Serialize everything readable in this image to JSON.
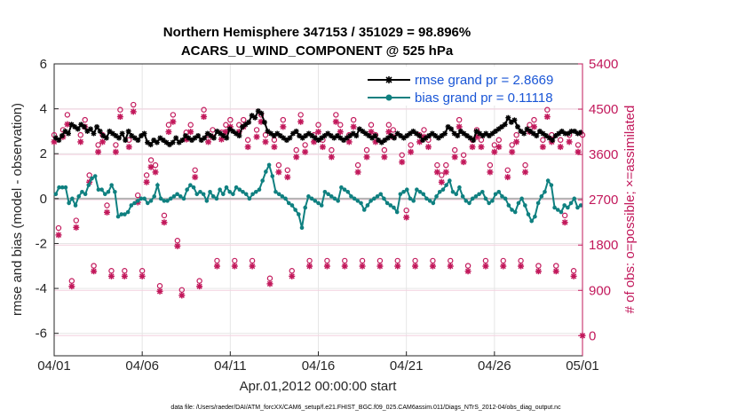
{
  "chart_data": {
    "type": "line",
    "title_lines": [
      "Northern Hemisphere 347153 / 351029 = 98.896%",
      "ACARS_U_WIND_COMPONENT @ 525 hPa"
    ],
    "xlabel": "Apr.01,2012 00:00:00 start",
    "ylabel_left": "rmse and bias (model - observation)",
    "ylabel_right": "# of obs: o=possible; ×=assimilated",
    "xlim": [
      0,
      30
    ],
    "ylim_left": [
      -7,
      6
    ],
    "ylim_right": [
      -400,
      5400
    ],
    "x_ticks": [
      0,
      5,
      10,
      15,
      20,
      25,
      30
    ],
    "x_tick_labels": [
      "04/01",
      "04/06",
      "04/11",
      "04/16",
      "04/21",
      "04/26",
      "05/01"
    ],
    "y_ticks_left": [
      -6,
      -4,
      -2,
      0,
      2,
      4,
      6
    ],
    "y_tick_labels_left": [
      "-6",
      "-4",
      "-2",
      "0",
      "2",
      "4",
      "6"
    ],
    "y_ticks_right": [
      0,
      900,
      1800,
      2700,
      3600,
      4500,
      5400
    ],
    "y_tick_labels_right": [
      "0",
      "900",
      "1800",
      "2700",
      "3600",
      "4500",
      "5400"
    ],
    "grid": true,
    "legend_position": "top-right",
    "series": [
      {
        "name": "rmse grand pr = 2.8669",
        "axis": "left",
        "color": "#000000",
        "marker": "asterisk",
        "values": [
          2.7,
          2.6,
          2.8,
          3.0,
          2.9,
          3.3,
          3.2,
          3.1,
          3.3,
          3.2,
          3.0,
          3.1,
          2.9,
          3.2,
          3.0,
          2.8,
          2.7,
          3.0,
          2.9,
          2.8,
          2.7,
          2.9,
          2.6,
          3.0,
          2.8,
          2.7,
          2.6,
          2.8,
          2.9,
          2.5,
          2.4,
          2.6,
          2.5,
          2.7,
          2.6,
          2.5,
          2.4,
          2.5,
          2.7,
          2.5,
          2.6,
          2.8,
          2.7,
          2.6,
          2.7,
          2.8,
          2.6,
          2.7,
          2.9,
          2.8,
          2.7,
          3.0,
          2.9,
          2.8,
          2.7,
          3.1,
          3.0,
          2.9,
          2.8,
          3.2,
          3.3,
          3.4,
          3.7,
          3.6,
          3.9,
          3.8,
          3.4,
          3.0,
          2.9,
          2.8,
          2.9,
          2.8,
          2.7,
          2.6,
          2.7,
          2.9,
          3.0,
          2.8,
          2.7,
          2.8,
          2.9,
          2.8,
          2.7,
          2.6,
          2.7,
          2.8,
          2.9,
          2.8,
          2.7,
          2.8,
          2.7,
          2.6,
          2.7,
          2.8,
          2.9,
          2.8,
          3.1,
          3.0,
          2.9,
          2.8,
          2.7,
          2.8,
          2.6,
          2.5,
          2.6,
          2.7,
          2.8,
          2.7,
          2.9,
          2.8,
          2.7,
          2.8,
          2.9,
          3.0,
          2.9,
          2.8,
          2.6,
          2.7,
          2.8,
          2.9,
          2.8,
          2.7,
          2.8,
          2.9,
          3.2,
          3.1,
          2.9,
          2.8,
          3.0,
          2.9,
          2.8,
          2.7,
          2.6,
          3.0,
          2.9,
          2.8,
          2.9,
          2.8,
          2.9,
          3.0,
          3.1,
          3.2,
          3.3,
          3.6,
          3.4,
          3.5,
          3.2,
          3.0,
          2.9,
          3.1,
          3.0,
          2.9,
          2.8,
          3.0,
          2.9,
          2.8,
          2.7,
          2.6,
          2.8,
          2.9,
          3.0,
          2.9,
          2.9,
          3.0,
          3.0,
          2.9,
          2.95
        ]
      },
      {
        "name": "bias grand pr = 0.11118",
        "axis": "left",
        "color": "#0f8080",
        "marker": "circle",
        "values": [
          0.2,
          0.5,
          0.5,
          0.5,
          -0.2,
          0.0,
          -0.3,
          0.1,
          0.3,
          0.2,
          0.6,
          0.9,
          1.0,
          0.4,
          0.4,
          0.2,
          0.3,
          0.6,
          0.3,
          -0.8,
          -0.7,
          -0.7,
          -0.6,
          -0.3,
          -0.2,
          -0.1,
          0.0,
          0.0,
          -0.2,
          -0.1,
          0.1,
          0.6,
          0.0,
          -0.1,
          -0.1,
          0.0,
          0.1,
          0.2,
          0.1,
          0.0,
          0.4,
          0.6,
          0.5,
          0.2,
          0.3,
          0.2,
          -0.1,
          0.3,
          0.1,
          0.0,
          0.4,
          0.2,
          0.5,
          0.3,
          0.2,
          0.5,
          0.4,
          0.3,
          0.2,
          0.0,
          0.2,
          0.3,
          0.4,
          0.8,
          1.2,
          1.5,
          1.0,
          0.3,
          0.2,
          0.1,
          0.0,
          -0.2,
          -0.3,
          -0.5,
          -0.7,
          -1.3,
          -0.4,
          0.1,
          0.0,
          -0.1,
          -0.2,
          -0.3,
          0.3,
          0.2,
          0.1,
          0.0,
          -0.1,
          0.5,
          0.4,
          0.3,
          0.1,
          0.0,
          -0.1,
          -0.2,
          -0.5,
          -0.3,
          -0.1,
          0.0,
          0.1,
          0.2,
          0.0,
          -0.2,
          -0.3,
          -0.4,
          -0.6,
          0.2,
          0.3,
          0.4,
          0.0,
          -0.1,
          0.4,
          0.3,
          0.2,
          0.0,
          -0.1,
          -0.2,
          0.1,
          0.3,
          0.4,
          0.6,
          0.8,
          0.3,
          0.2,
          0.5,
          0.1,
          -0.1,
          -0.2,
          0.0,
          0.1,
          0.2,
          0.3,
          0.0,
          -0.2,
          -0.1,
          0.2,
          0.3,
          0.1,
          0.0,
          -0.3,
          -0.5,
          -0.6,
          -0.2,
          0.0,
          -0.3,
          -0.7,
          -1.0,
          -0.8,
          -0.2,
          0.1,
          0.3,
          0.8,
          0.6,
          -0.4,
          -0.5,
          -0.6,
          -0.3,
          -0.4,
          -0.2,
          0.0,
          -0.4,
          -0.3
        ]
      },
      {
        "name": "obs possible",
        "axis": "right",
        "color": "#c2185b",
        "marker": "o",
        "x": [
          0,
          0.25,
          0.5,
          0.75,
          1.0,
          1.25,
          1.5,
          1.75,
          2.0,
          2.25,
          2.5,
          2.75,
          3.0,
          3.25,
          3.5,
          3.75,
          4.0,
          4.25,
          4.5,
          4.75,
          5.0,
          5.25,
          5.5,
          5.75,
          6.0,
          6.25,
          6.5,
          6.75,
          7.0,
          7.25,
          7.5,
          7.75,
          8.0,
          8.25,
          8.5,
          8.75,
          9.0,
          9.25,
          9.5,
          9.75,
          10.0,
          10.25,
          10.5,
          10.75,
          11.0,
          11.25,
          11.5,
          11.75,
          12.0,
          12.25,
          12.5,
          12.75,
          13.0,
          13.25,
          13.5,
          13.75,
          14.0,
          14.25,
          14.5,
          14.75,
          15.0,
          15.25,
          15.5,
          15.75,
          16.0,
          16.25,
          16.5,
          16.75,
          17.0,
          17.25,
          17.5,
          17.75,
          18.0,
          18.25,
          18.5,
          18.75,
          19.0,
          19.25,
          19.5,
          19.75,
          20.0,
          20.25,
          20.5,
          20.75,
          21.0,
          21.25,
          21.5,
          21.75,
          22.0,
          22.25,
          22.5,
          22.75,
          23.0,
          23.25,
          23.5,
          23.75,
          24.0,
          24.25,
          24.5,
          24.75,
          25.0,
          25.25,
          25.5,
          25.75,
          26.0,
          26.25,
          26.5,
          26.75,
          27.0,
          27.25,
          27.5,
          27.75,
          28.0,
          28.25,
          28.5,
          28.75,
          29.0,
          29.25,
          29.5,
          29.75,
          30.0
        ],
        "values": [
          3900,
          2050,
          4000,
          4300,
          1000,
          2200,
          3900,
          4200,
          3100,
          1300,
          3700,
          3900,
          2500,
          1200,
          3700,
          4400,
          1200,
          3800,
          4500,
          2700,
          1200,
          3100,
          3400,
          3300,
          900,
          2300,
          4100,
          4300,
          1800,
          820,
          3950,
          4100,
          3200,
          1000,
          4400,
          3900,
          4000,
          1400,
          3950,
          4100,
          4200,
          1400,
          4100,
          4200,
          3800,
          1400,
          4000,
          4300,
          3900,
          1050,
          3800,
          3300,
          4200,
          3200,
          1200,
          3600,
          4300,
          3700,
          1400,
          3900,
          4100,
          3800,
          1400,
          3600,
          4300,
          4100,
          1400,
          3900,
          4200,
          3300,
          1400,
          3600,
          4100,
          3900,
          1400,
          3600,
          4100,
          4000,
          1400,
          3500,
          2400,
          3700,
          1400,
          3900,
          4000,
          3800,
          1400,
          3300,
          3100,
          3300,
          1400,
          3600,
          4200,
          3500,
          1300,
          3800,
          4000,
          3800,
          1400,
          3300,
          3700,
          3800,
          1400,
          3200,
          3700,
          3900,
          1400,
          3300,
          4100,
          4200,
          1300,
          3800,
          4400,
          3900,
          1300,
          3800,
          2300,
          3900,
          1200,
          3700,
          3900
        ]
      },
      {
        "name": "obs assimilated",
        "axis": "right",
        "color": "#c2185b",
        "marker": "x",
        "x": [
          0,
          0.25,
          0.5,
          0.75,
          1.0,
          1.25,
          1.5,
          1.75,
          2.0,
          2.25,
          2.5,
          2.75,
          3.0,
          3.25,
          3.5,
          3.75,
          4.0,
          4.25,
          4.5,
          4.75,
          5.0,
          5.25,
          5.5,
          5.75,
          6.0,
          6.25,
          6.5,
          6.75,
          7.0,
          7.25,
          7.5,
          7.75,
          8.0,
          8.25,
          8.5,
          8.75,
          9.0,
          9.25,
          9.5,
          9.75,
          10.0,
          10.25,
          10.5,
          10.75,
          11.0,
          11.25,
          11.5,
          11.75,
          12.0,
          12.25,
          12.5,
          12.75,
          13.0,
          13.25,
          13.5,
          13.75,
          14.0,
          14.25,
          14.5,
          14.75,
          15.0,
          15.25,
          15.5,
          15.75,
          16.0,
          16.25,
          16.5,
          16.75,
          17.0,
          17.25,
          17.5,
          17.75,
          18.0,
          18.25,
          18.5,
          18.75,
          19.0,
          19.25,
          19.5,
          19.75,
          20.0,
          20.25,
          20.5,
          20.75,
          21.0,
          21.25,
          21.5,
          21.75,
          22.0,
          22.25,
          22.5,
          22.75,
          23.0,
          23.25,
          23.5,
          23.75,
          24.0,
          24.25,
          24.5,
          24.75,
          25.0,
          25.25,
          25.5,
          25.75,
          26.0,
          26.25,
          26.5,
          26.75,
          27.0,
          27.25,
          27.5,
          27.75,
          28.0,
          28.25,
          28.5,
          28.75,
          29.0,
          29.25,
          29.5,
          29.75,
          30.0
        ],
        "values": [
          3850,
          2000,
          3950,
          4200,
          980,
          2150,
          3850,
          4150,
          3050,
          1280,
          3650,
          3850,
          2450,
          1180,
          3650,
          4350,
          1180,
          3750,
          4450,
          2650,
          1180,
          3050,
          3350,
          3250,
          880,
          2250,
          4050,
          4250,
          1780,
          800,
          3900,
          4050,
          3150,
          980,
          4350,
          3850,
          3950,
          1380,
          3900,
          4050,
          4150,
          1380,
          4050,
          4150,
          3750,
          1380,
          3950,
          4250,
          3850,
          1030,
          3750,
          3250,
          4150,
          3150,
          1180,
          3550,
          4250,
          3650,
          1380,
          3850,
          4050,
          3750,
          1380,
          3550,
          4250,
          4050,
          1380,
          3850,
          4150,
          3250,
          1380,
          3550,
          4050,
          3850,
          1380,
          3550,
          4050,
          3950,
          1380,
          3450,
          2350,
          3650,
          1380,
          3850,
          3950,
          3750,
          1380,
          3250,
          3050,
          3250,
          1380,
          3550,
          4150,
          3450,
          1280,
          3750,
          3950,
          3750,
          1380,
          3250,
          3650,
          3750,
          1380,
          3150,
          3650,
          3850,
          1380,
          3250,
          4050,
          4150,
          1280,
          3750,
          4350,
          3850,
          1280,
          3750,
          2250,
          3850,
          1180,
          3650,
          0
        ]
      }
    ],
    "footnote": "data file: /Users/raeder/DAI/ATM_forcXX/CAM6_setup/f.e21.FHIST_BGC.f09_025.CAM6assim.011/Diags_NTrS_2012-04/obs_diag_output.nc"
  }
}
